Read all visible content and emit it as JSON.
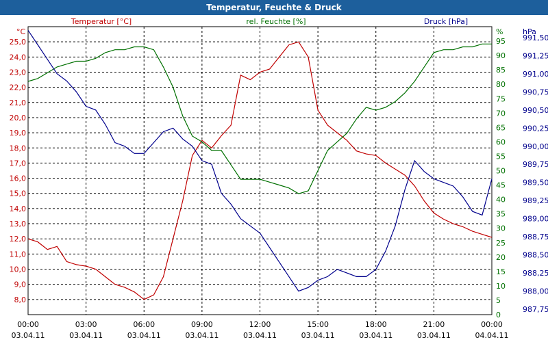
{
  "window": {
    "title": "Temperatur, Feuchte & Druck"
  },
  "colors": {
    "temp": "#c00000",
    "humidity": "#007000",
    "pressure": "#00008c",
    "grid": "#000000"
  },
  "chart_data": {
    "type": "line",
    "title": "Temperatur, Feuchte & Druck",
    "x_labels": [
      {
        "h": 0,
        "time": "00:00",
        "date": "03.04.11"
      },
      {
        "h": 3,
        "time": "03:00",
        "date": "03.04.11"
      },
      {
        "h": 6,
        "time": "06:00",
        "date": "03.04.11"
      },
      {
        "h": 9,
        "time": "09:00",
        "date": "03.04.11"
      },
      {
        "h": 12,
        "time": "12:00",
        "date": "03.04.11"
      },
      {
        "h": 15,
        "time": "15:00",
        "date": "03.04.11"
      },
      {
        "h": 18,
        "time": "18:00",
        "date": "03.04.11"
      },
      {
        "h": 21,
        "time": "21:00",
        "date": "03.04.11"
      },
      {
        "h": 24,
        "time": "00:00",
        "date": "04.04.11"
      }
    ],
    "xlim": [
      0,
      24
    ],
    "axes": {
      "temp": {
        "label": "Temperatur [°C]",
        "unit": "°C",
        "ylim": [
          7,
          26
        ],
        "ticks": [
          "8,0",
          "9,0",
          "10,0",
          "11,0",
          "12,0",
          "13,0",
          "14,0",
          "15,0",
          "16,0",
          "17,0",
          "18,0",
          "19,0",
          "20,0",
          "21,0",
          "22,0",
          "23,0",
          "24,0",
          "25,0"
        ],
        "tick_values": [
          8,
          9,
          10,
          11,
          12,
          13,
          14,
          15,
          16,
          17,
          18,
          19,
          20,
          21,
          22,
          23,
          24,
          25
        ]
      },
      "humidity": {
        "label": "rel. Feuchte [%]",
        "unit": "%",
        "ylim": [
          0,
          100
        ],
        "ticks": [
          "0",
          "5",
          "10",
          "15",
          "20",
          "25",
          "30",
          "35",
          "40",
          "45",
          "50",
          "55",
          "60",
          "65",
          "70",
          "75",
          "80",
          "85",
          "90",
          "95"
        ],
        "tick_values": [
          0,
          5,
          10,
          15,
          20,
          25,
          30,
          35,
          40,
          45,
          50,
          55,
          60,
          65,
          70,
          75,
          80,
          85,
          90,
          95
        ]
      },
      "pressure": {
        "label": "Druck [hPa]",
        "unit": "hPa",
        "ylim": [
          987.675,
          991.65
        ],
        "ticks": [
          "987,75",
          "988,00",
          "988,25",
          "988,50",
          "988,75",
          "989,00",
          "989,25",
          "989,50",
          "989,75",
          "990,00",
          "990,25",
          "990,50",
          "990,75",
          "991,00",
          "991,25",
          "991,50"
        ],
        "tick_values": [
          987.75,
          988.0,
          988.25,
          988.5,
          988.75,
          989.0,
          989.25,
          989.5,
          989.75,
          990.0,
          990.25,
          990.5,
          990.75,
          991.0,
          991.25,
          991.5
        ]
      }
    },
    "series": [
      {
        "name": "Temperatur [°C]",
        "axis": "temp",
        "x": [
          0,
          0.5,
          1,
          1.5,
          2,
          2.5,
          3,
          3.5,
          4,
          4.5,
          5,
          5.5,
          6,
          6.5,
          7,
          7.5,
          8,
          8.5,
          9,
          9.5,
          10,
          10.5,
          11,
          11.5,
          12,
          12.5,
          13,
          13.5,
          14,
          14.5,
          15,
          15.5,
          16,
          16.5,
          17,
          17.5,
          18,
          18.5,
          19,
          19.5,
          20,
          20.5,
          21,
          21.5,
          22,
          22.5,
          23,
          23.5,
          24
        ],
        "values": [
          12.0,
          11.8,
          11.3,
          11.5,
          10.5,
          10.3,
          10.2,
          10.0,
          9.5,
          9.0,
          8.8,
          8.5,
          8.0,
          8.3,
          9.5,
          12.0,
          14.5,
          17.5,
          18.5,
          18.0,
          18.8,
          19.5,
          22.8,
          22.5,
          23.0,
          23.2,
          24.0,
          24.8,
          25.0,
          24.0,
          20.5,
          19.5,
          19.0,
          18.5,
          17.8,
          17.6,
          17.5,
          17.0,
          16.6,
          16.2,
          15.5,
          14.5,
          13.7,
          13.3,
          13.0,
          12.8,
          12.5,
          12.3,
          12.1
        ]
      },
      {
        "name": "rel. Feuchte [%]",
        "axis": "humidity",
        "x": [
          0,
          0.5,
          1,
          1.5,
          2,
          2.5,
          3,
          3.5,
          4,
          4.5,
          5,
          5.5,
          6,
          6.5,
          7,
          7.5,
          8,
          8.5,
          9,
          9.5,
          10,
          10.5,
          11,
          11.5,
          12,
          12.5,
          13,
          13.5,
          14,
          14.5,
          15,
          15.5,
          16,
          16.5,
          17,
          17.5,
          18,
          18.5,
          19,
          19.5,
          20,
          20.5,
          21,
          21.5,
          22,
          22.5,
          23,
          23.5,
          24
        ],
        "values": [
          81,
          82,
          84,
          86,
          87,
          88,
          88,
          89,
          91,
          92,
          92,
          93,
          93,
          92,
          86,
          79,
          69,
          62,
          60,
          57,
          57,
          52,
          47,
          47,
          47,
          46,
          45,
          44,
          42,
          43,
          50,
          57,
          60,
          63,
          68,
          72,
          71,
          72,
          74,
          77,
          81,
          86,
          91,
          92,
          92,
          93,
          93,
          94,
          94
        ]
      },
      {
        "name": "Druck [hPa]",
        "axis": "pressure",
        "x": [
          0,
          0.5,
          1,
          1.5,
          2,
          2.5,
          3,
          3.5,
          4,
          4.5,
          5,
          5.5,
          6,
          6.5,
          7,
          7.5,
          8,
          8.5,
          9,
          9.5,
          10,
          10.5,
          11,
          11.5,
          12,
          12.5,
          13,
          13.5,
          14,
          14.5,
          15,
          15.5,
          16,
          16.5,
          17,
          17.5,
          18,
          18.5,
          19,
          19.5,
          20,
          20.5,
          21,
          21.5,
          22,
          22.5,
          23,
          23.5,
          24
        ],
        "values": [
          991.6,
          991.4,
          991.2,
          991.0,
          990.9,
          990.75,
          990.55,
          990.5,
          990.3,
          990.05,
          990.0,
          989.9,
          989.9,
          990.05,
          990.2,
          990.25,
          990.1,
          990.0,
          989.8,
          989.75,
          989.35,
          989.2,
          989.0,
          988.9,
          988.8,
          988.6,
          988.4,
          988.2,
          988.0,
          988.05,
          988.15,
          988.2,
          988.3,
          988.25,
          988.2,
          988.2,
          988.3,
          988.55,
          988.9,
          989.4,
          989.8,
          989.65,
          989.55,
          989.5,
          989.45,
          989.3,
          989.1,
          989.05,
          989.55
        ]
      }
    ]
  }
}
